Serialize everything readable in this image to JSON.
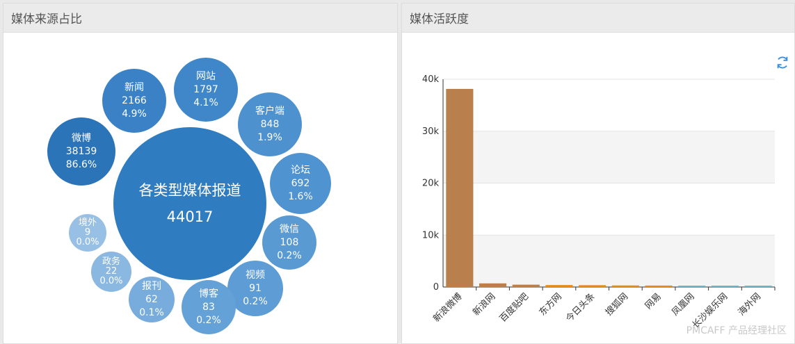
{
  "left_panel": {
    "title": "媒体来源占比",
    "center": {
      "label": "各类型媒体报道",
      "value": "44017"
    },
    "bubbles": [
      {
        "label": "微博",
        "value": "38139",
        "pct": "86.6%",
        "color": "#2b74b8"
      },
      {
        "label": "新闻",
        "value": "2166",
        "pct": "4.9%",
        "color": "#3a82c5"
      },
      {
        "label": "网站",
        "value": "1797",
        "pct": "4.1%",
        "color": "#3f87c8"
      },
      {
        "label": "客户端",
        "value": "848",
        "pct": "1.9%",
        "color": "#4d91cf"
      },
      {
        "label": "论坛",
        "value": "692",
        "pct": "1.6%",
        "color": "#4f93d0"
      },
      {
        "label": "微信",
        "value": "108",
        "pct": "0.2%",
        "color": "#5a9ad3"
      },
      {
        "label": "视频",
        "value": "91",
        "pct": "0.2%",
        "color": "#5d9cd4"
      },
      {
        "label": "博客",
        "value": "83",
        "pct": "0.2%",
        "color": "#64a1d7"
      },
      {
        "label": "报刊",
        "value": "62",
        "pct": "0.1%",
        "color": "#77acdc"
      },
      {
        "label": "政务",
        "value": "22",
        "pct": "0.0%",
        "color": "#8bb8e1"
      },
      {
        "label": "境外",
        "value": "9",
        "pct": "0.0%",
        "color": "#98c0e5"
      }
    ]
  },
  "right_panel": {
    "title": "媒体活跃度",
    "refresh_icon": "refresh-icon"
  },
  "watermark": "PMCAFF 产品经理社区",
  "chart_data": {
    "type": "bar",
    "categories": [
      "新浪微博",
      "新浪网",
      "百度贴吧",
      "东方网",
      "今日头条",
      "搜狐网",
      "网易",
      "凤凰网",
      "长沙娱乐网",
      "海外网"
    ],
    "values": [
      38139,
      700,
      450,
      380,
      350,
      300,
      280,
      120,
      100,
      90
    ],
    "colors": [
      "#b9804d",
      "#b9804d",
      "#b9804d",
      "#e88a1a",
      "#e88a1a",
      "#e88a1a",
      "#e88a1a",
      "#6fb3c6",
      "#6fb3c6",
      "#6fb3c6"
    ],
    "ylim": [
      0,
      40000
    ],
    "yticks": [
      "0",
      "10k",
      "20k",
      "30k",
      "40k"
    ],
    "grid": true
  }
}
